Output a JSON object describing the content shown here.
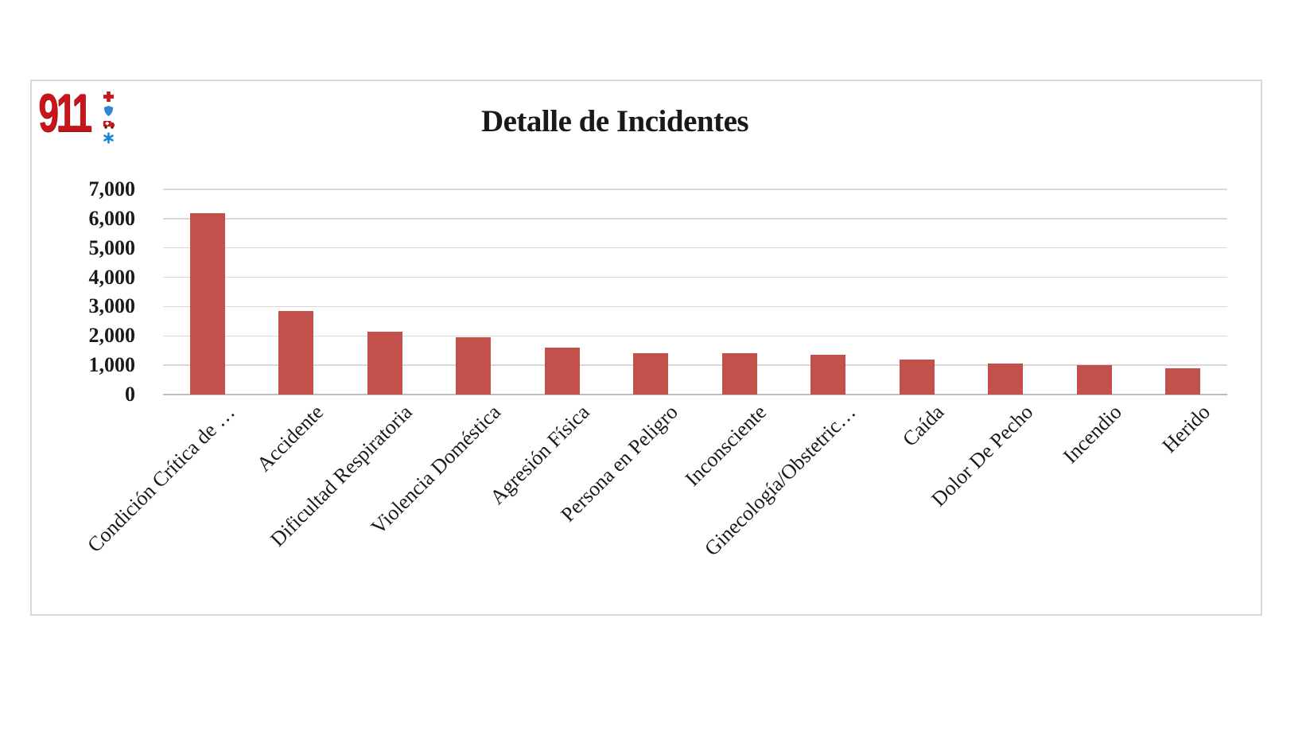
{
  "page": {
    "background": "#FFFFFF",
    "card_border_color": "#D9D9D9",
    "card_background": "#FFFFFF"
  },
  "logo": {
    "text": "911",
    "text_color": "#C8151B",
    "icon_red": "#C4161C",
    "icon_blue": "#2E86D5",
    "icons": [
      "medical-cross",
      "police-shield",
      "ambulance",
      "star-of-life"
    ]
  },
  "chart_data": {
    "type": "bar",
    "title": "Detalle de Incidentes",
    "categories": [
      "Condición Crítica de …",
      "Accidente",
      "Dificultad Respiratoria",
      "Violencia Doméstica",
      "Agresión Física",
      "Persona en Peligro",
      "Inconsciente",
      "Ginecología/Obstetric…",
      "Caída",
      "Dolor De Pecho",
      "Incendio",
      "Herido"
    ],
    "values": [
      6200,
      2850,
      2150,
      1950,
      1600,
      1400,
      1400,
      1350,
      1200,
      1050,
      1000,
      900
    ],
    "xlabel": "",
    "ylabel": "",
    "ylim": [
      0,
      7000
    ],
    "yticks": [
      0,
      1000,
      2000,
      3000,
      4000,
      5000,
      6000,
      7000
    ],
    "ytick_labels": [
      "0",
      "1,000",
      "2,000",
      "3,000",
      "4,000",
      "5,000",
      "6,000",
      "7,000"
    ],
    "grid": true,
    "legend_position": "none",
    "category_label_rotation_deg": 45,
    "bar_color": "#C2504B",
    "gridline_color": "#D9D9D9",
    "axis_line_color": "#BFBFBF"
  }
}
